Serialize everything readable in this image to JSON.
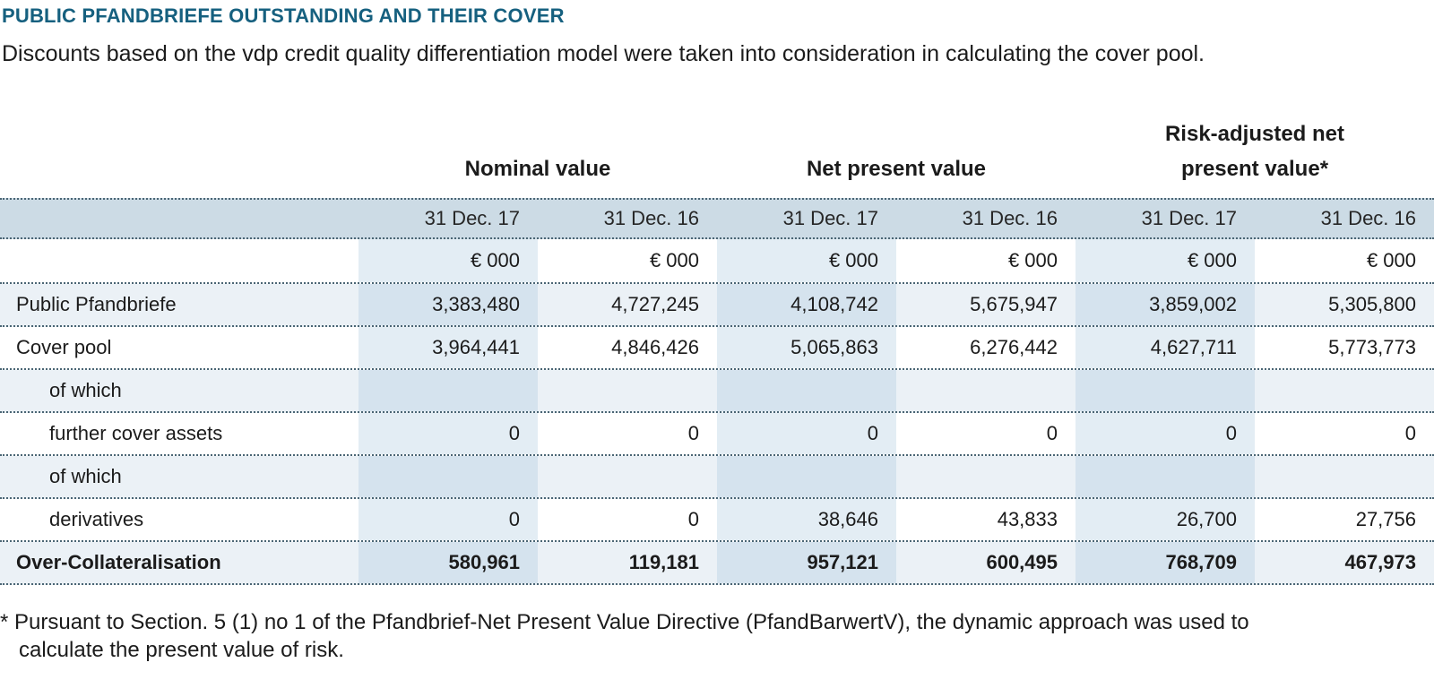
{
  "page": {
    "title": "PUBLIC PFANDBRIEFE OUTSTANDING AND THEIR COVER",
    "subtitle": "Discounts based on the vdp credit quality differentiation model were taken into consideration in calculating the cover pool.",
    "footnote": {
      "line1": "* Pursuant to Section. 5 (1) no 1 of the Pfandbrief-Net Present Value Directive (PfandBarwertV), the dynamic approach was used to",
      "line2": "calculate the present value of risk."
    }
  },
  "table": {
    "column_groups": [
      {
        "label": "Nominal value"
      },
      {
        "label": "Net present value"
      },
      {
        "label": "Risk-adjusted net present value*"
      }
    ],
    "date_headers": [
      "31 Dec. 17",
      "31 Dec. 16",
      "31 Dec. 17",
      "31 Dec. 16",
      "31 Dec. 17",
      "31 Dec. 16"
    ],
    "units": [
      "€ 000",
      "€ 000",
      "€ 000",
      "€ 000",
      "€ 000",
      "€ 000"
    ],
    "rows": [
      {
        "label": "Public Pfandbriefe",
        "indent": false,
        "bold": false,
        "values": [
          "3,383,480",
          "4,727,245",
          "4,108,742",
          "5,675,947",
          "3,859,002",
          "5,305,800"
        ]
      },
      {
        "label": "Cover pool",
        "indent": false,
        "bold": false,
        "values": [
          "3,964,441",
          "4,846,426",
          "5,065,863",
          "6,276,442",
          "4,627,711",
          "5,773,773"
        ]
      },
      {
        "label": "of which",
        "indent": true,
        "bold": false,
        "values": [
          "",
          "",
          "",
          "",
          "",
          ""
        ]
      },
      {
        "label": "further cover assets",
        "indent": true,
        "bold": false,
        "values": [
          "0",
          "0",
          "0",
          "0",
          "0",
          "0"
        ]
      },
      {
        "label": "of which",
        "indent": true,
        "bold": false,
        "values": [
          "",
          "",
          "",
          "",
          "",
          ""
        ]
      },
      {
        "label": "derivatives",
        "indent": true,
        "bold": false,
        "values": [
          "0",
          "0",
          "38,646",
          "43,833",
          "26,700",
          "27,756"
        ]
      },
      {
        "label": "Over-Collateralisation",
        "indent": false,
        "bold": true,
        "values": [
          "580,961",
          "119,181",
          "957,121",
          "600,495",
          "768,709",
          "467,973"
        ]
      }
    ]
  },
  "colors": {
    "title": "#16607f",
    "header_band": "#ccdbe5",
    "shaded_row": "#ebf1f6",
    "column_tint": "#dce8f1",
    "divider_dots": "#4a6574",
    "text": "#1b1b1b"
  }
}
